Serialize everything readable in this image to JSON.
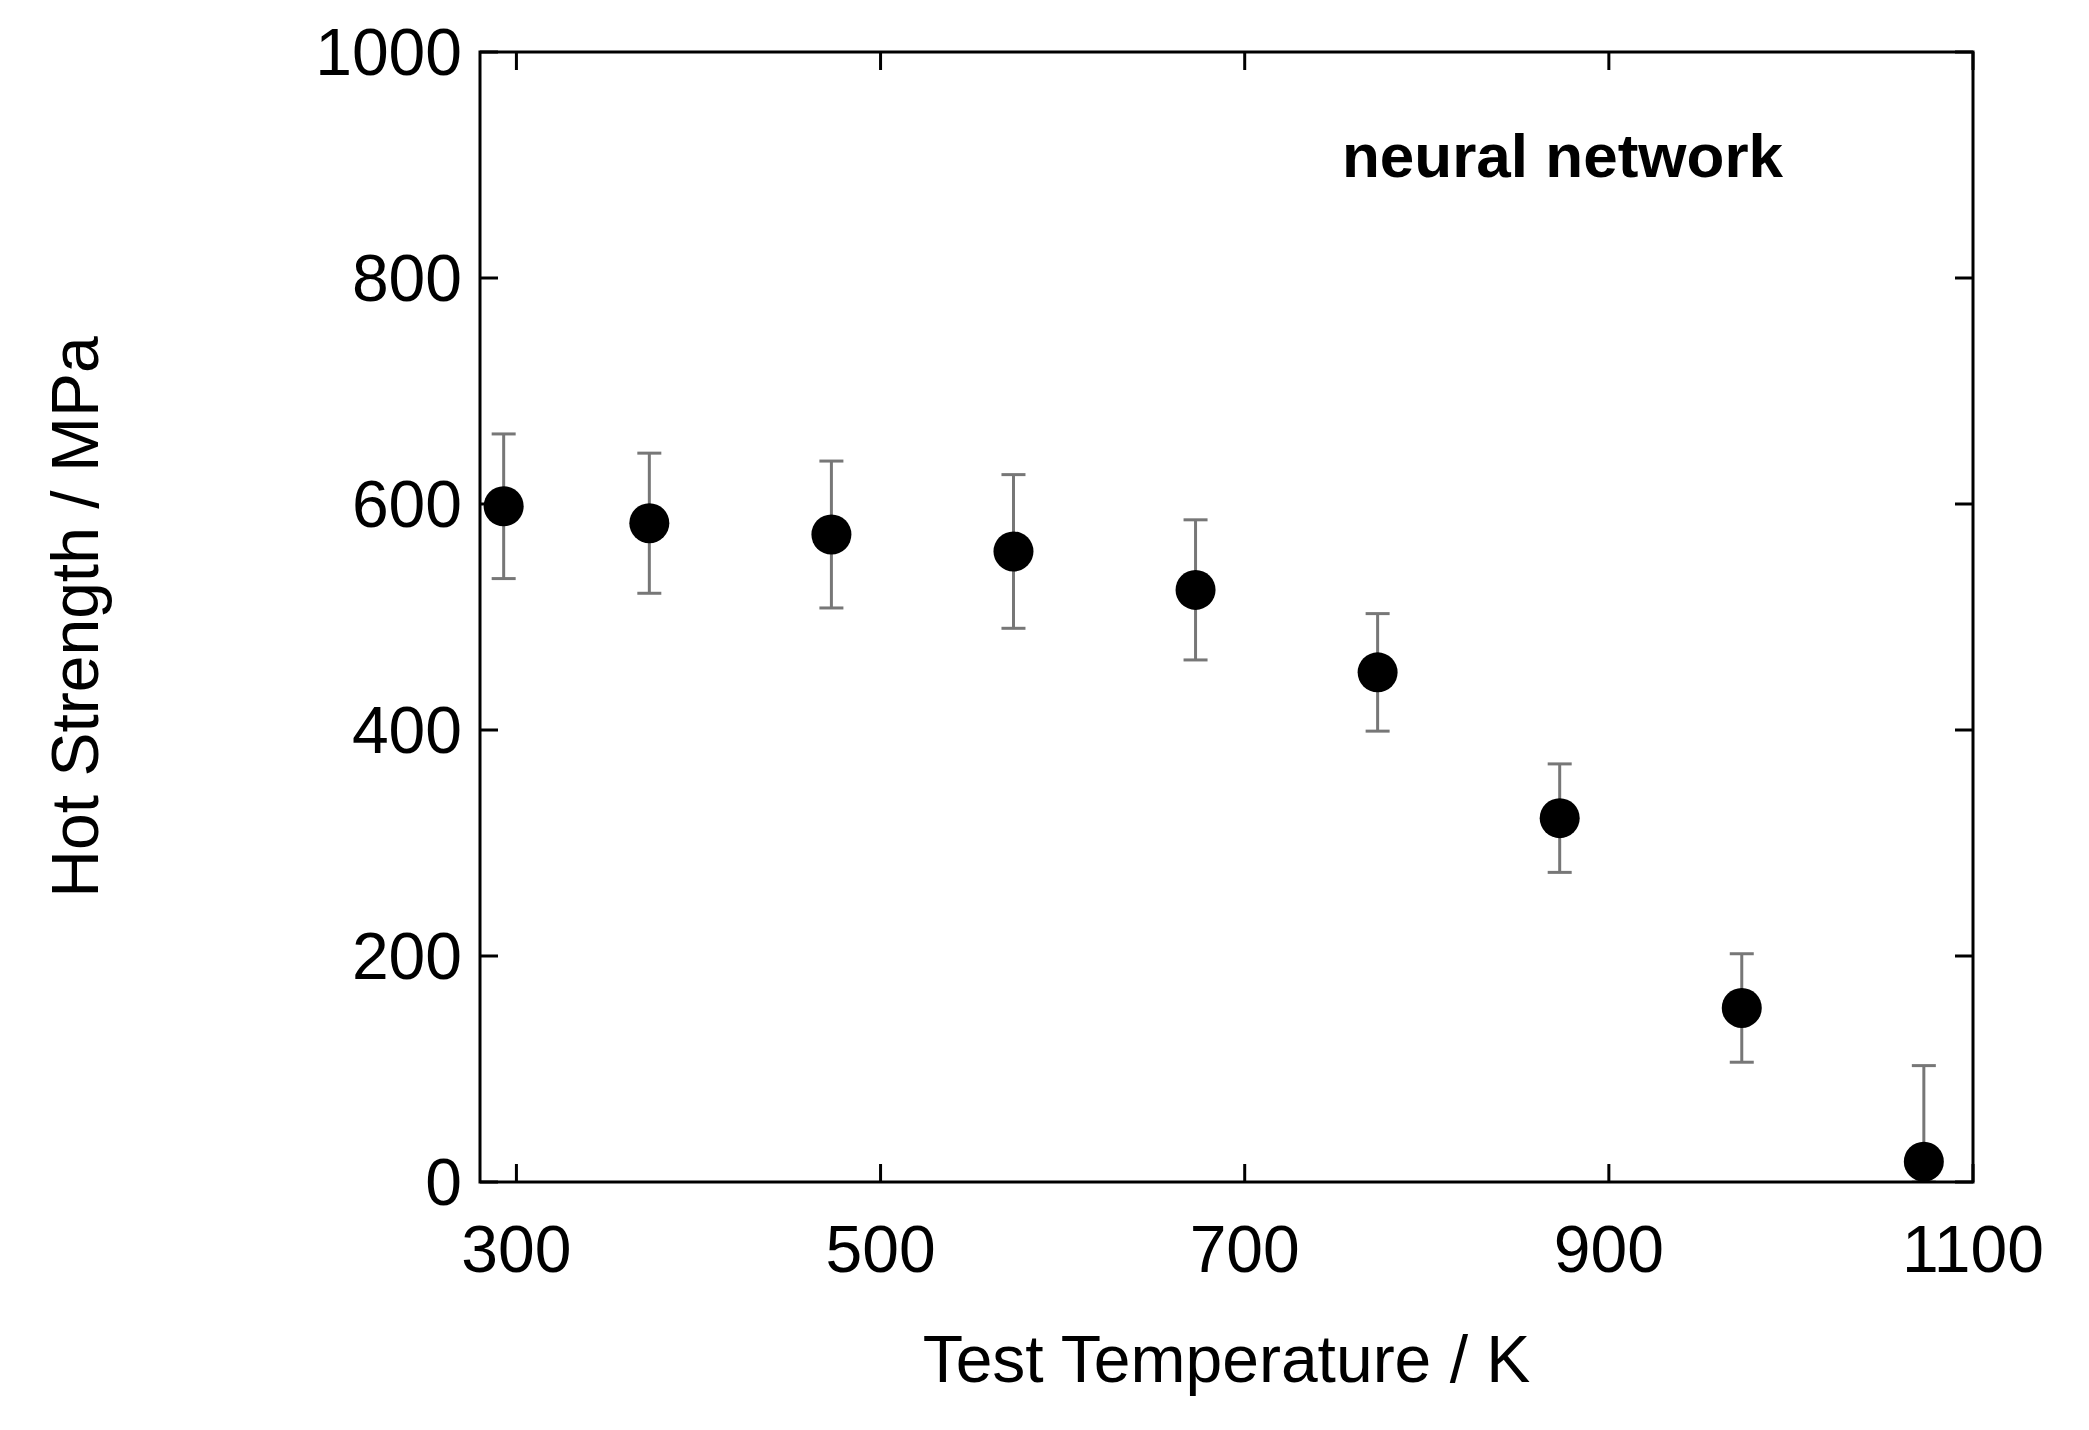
{
  "chart_data": {
    "type": "scatter",
    "xlabel": "Test Temperature / K",
    "ylabel": "Hot Strength / MPa",
    "annotations": [
      "neural network"
    ],
    "x": [
      293,
      373,
      473,
      573,
      673,
      773,
      873,
      973,
      1073
    ],
    "series": [
      {
        "color": "#000000",
        "values": [
          598,
          583,
          573,
          558,
          524,
          451,
          322,
          154,
          18
        ],
        "errors": [
          64,
          62,
          65,
          68,
          62,
          52,
          48,
          48,
          [
            0,
            103
          ]
        ]
      }
    ],
    "xlim": [
      280,
      1100
    ],
    "xticks": [
      300,
      500,
      700,
      900,
      1100
    ],
    "ylim": [
      0,
      1000
    ],
    "yticks": [
      0,
      200,
      400,
      600,
      800,
      1000
    ],
    "marker": "circle",
    "grid": false
  }
}
